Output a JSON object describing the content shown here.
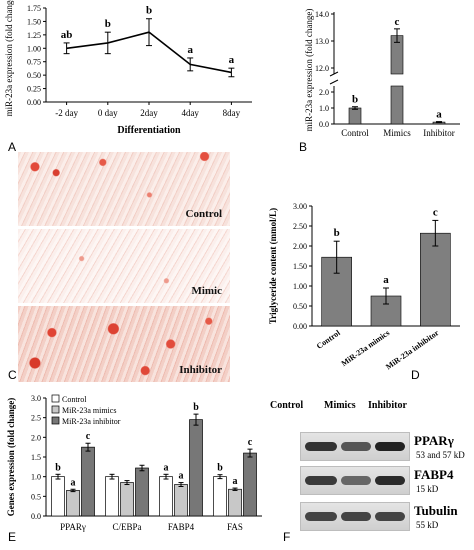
{
  "chart_data": [
    {
      "panel": "A",
      "type": "line",
      "categories": [
        "-2 day",
        "0 day",
        "2day",
        "4day",
        "8day"
      ],
      "values": [
        1.0,
        1.1,
        1.3,
        0.7,
        0.55
      ],
      "errors": [
        0.1,
        0.2,
        0.25,
        0.12,
        0.08
      ],
      "letters": [
        "ab",
        "b",
        "b",
        "a",
        "a"
      ],
      "xlabel": "Differentiation",
      "ylabel": "miR-23a expression (fold change)",
      "ylim": [
        0,
        1.75
      ],
      "yticks": [
        "0.00",
        "0.25",
        "0.50",
        "0.75",
        "1.00",
        "1.25",
        "1.50",
        "1.75"
      ]
    },
    {
      "panel": "B",
      "type": "bar",
      "categories": [
        "Control",
        "Mimics",
        "Inhibitor"
      ],
      "values": [
        1.0,
        13.2,
        0.12
      ],
      "errors": [
        0.08,
        0.25,
        0.03
      ],
      "letters": [
        "b",
        "c",
        "a"
      ],
      "ylabel": "miR-23a expression (fold change)",
      "yticks_top": [
        "12.0",
        "13.0",
        "14.0"
      ],
      "yticks_bottom": [
        "0.0",
        "1.0",
        "2.0"
      ],
      "axis_break": true
    },
    {
      "panel": "D",
      "type": "bar",
      "categories": [
        "Control",
        "MiR-23a mimics",
        "MiR-23a inhibitor"
      ],
      "values": [
        1.72,
        0.75,
        2.32
      ],
      "errors": [
        0.4,
        0.2,
        0.32
      ],
      "letters": [
        "b",
        "a",
        "c"
      ],
      "ylabel": "Triglyceride content (mmol/L)",
      "ylim": [
        0,
        3
      ],
      "yticks": [
        "0.00",
        "0.50",
        "1.00",
        "1.50",
        "2.00",
        "2.50",
        "3.00"
      ]
    },
    {
      "panel": "E",
      "type": "bar",
      "categories": [
        "PPARγ",
        "C/EBPa",
        "FABP4",
        "FAS"
      ],
      "series": [
        {
          "name": "Control",
          "values": [
            1.0,
            1.0,
            1.0,
            1.0
          ],
          "errors": [
            0.06,
            0.06,
            0.06,
            0.05
          ],
          "letters": [
            "b",
            "",
            "a",
            "b"
          ],
          "color": "#ffffff"
        },
        {
          "name": "MiR-23a mimics",
          "values": [
            0.65,
            0.85,
            0.8,
            0.68
          ],
          "errors": [
            0.03,
            0.05,
            0.05,
            0.03
          ],
          "letters": [
            "a",
            "",
            "a",
            "a"
          ],
          "color": "#c8c8c8"
        },
        {
          "name": "MiR-23a inhibitor",
          "values": [
            1.75,
            1.22,
            2.45,
            1.6
          ],
          "errors": [
            0.1,
            0.07,
            0.14,
            0.1
          ],
          "letters": [
            "c",
            "",
            "b",
            "c"
          ],
          "color": "#777777"
        }
      ],
      "ylabel": "Genes expression (fold change)",
      "ylim": [
        0,
        3
      ],
      "yticks": [
        "0.0",
        "0.5",
        "1.0",
        "1.5",
        "2.0",
        "2.5",
        "3.0"
      ]
    }
  ],
  "panels": {
    "a": "A",
    "b": "B",
    "c": "C",
    "d": "D",
    "e": "E",
    "f": "F"
  },
  "staining": {
    "labels": [
      "Control",
      "Mimic",
      "Inhibitor"
    ]
  },
  "western": {
    "columns": [
      "Control",
      "Mimics",
      "Inhibitor"
    ],
    "proteins": [
      {
        "name": "PPARγ",
        "kd": "53 and 57 kD"
      },
      {
        "name": "FABP4",
        "kd": "15 kD"
      },
      {
        "name": "Tubulin",
        "kd": "55 kD"
      }
    ]
  }
}
